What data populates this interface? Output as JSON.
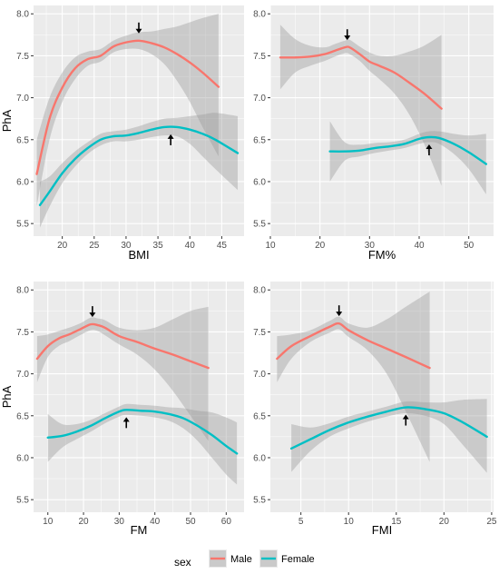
{
  "colors": {
    "male": "#F8766D",
    "female": "#00BFC4",
    "panel_bg": "#EBEBEB",
    "grid": "#ffffff",
    "ribbon": "#999999"
  },
  "legend": {
    "title": "sex",
    "items": [
      "Male",
      "Female"
    ]
  },
  "chart_data": [
    {
      "type": "line",
      "xlabel": "BMI",
      "ylabel": "PhA",
      "xlim": [
        15.5,
        48.5
      ],
      "ylim": [
        5.35,
        8.1
      ],
      "xticks": [
        15,
        20,
        25,
        30,
        35,
        40,
        45
      ],
      "yticks": [
        5.5,
        6.0,
        6.5,
        7.0,
        7.5,
        8.0
      ],
      "ytick_labels": [
        "5.5",
        "6.0",
        "6.5",
        "7.0",
        "7.5",
        "8.0"
      ],
      "grid": true,
      "series": [
        {
          "name": "Male",
          "x": [
            16,
            18,
            20,
            22,
            24,
            26,
            28,
            30,
            32,
            34,
            36,
            38,
            40,
            42,
            44.5
          ],
          "y": [
            6.09,
            6.75,
            7.12,
            7.35,
            7.46,
            7.5,
            7.61,
            7.66,
            7.68,
            7.65,
            7.6,
            7.52,
            7.42,
            7.3,
            7.13
          ],
          "lo": [
            5.7,
            6.5,
            6.95,
            7.22,
            7.38,
            7.43,
            7.54,
            7.58,
            7.58,
            7.52,
            7.4,
            7.2,
            6.95,
            6.65,
            6.3
          ],
          "hi": [
            6.5,
            7.0,
            7.3,
            7.48,
            7.55,
            7.58,
            7.68,
            7.74,
            7.78,
            7.79,
            7.82,
            7.85,
            7.9,
            7.95,
            8.0
          ]
        },
        {
          "name": "Female",
          "x": [
            16.5,
            18,
            20,
            22,
            24,
            26,
            28,
            30,
            32,
            34,
            36,
            38,
            40,
            42,
            44,
            47.5
          ],
          "y": [
            5.72,
            5.88,
            6.1,
            6.27,
            6.4,
            6.5,
            6.54,
            6.55,
            6.58,
            6.62,
            6.65,
            6.65,
            6.62,
            6.57,
            6.5,
            6.34
          ],
          "lo": [
            5.45,
            5.7,
            5.98,
            6.18,
            6.33,
            6.43,
            6.48,
            6.48,
            6.5,
            6.53,
            6.55,
            6.54,
            6.45,
            6.3,
            6.15,
            5.9
          ],
          "hi": [
            6.0,
            6.06,
            6.22,
            6.36,
            6.47,
            6.57,
            6.6,
            6.62,
            6.66,
            6.71,
            6.75,
            6.76,
            6.78,
            6.8,
            6.82,
            6.78
          ]
        }
      ],
      "annotations": [
        {
          "x": 32,
          "y": 7.68,
          "dir": "down"
        },
        {
          "x": 37,
          "y": 6.65,
          "dir": "up"
        }
      ]
    },
    {
      "type": "line",
      "xlabel": "FM%",
      "ylabel": "",
      "xlim": [
        10,
        55
      ],
      "ylim": [
        5.35,
        8.1
      ],
      "xticks": [
        10,
        20,
        30,
        40,
        50
      ],
      "yticks": [
        5.5,
        6.0,
        6.5,
        7.0,
        7.5,
        8.0
      ],
      "ytick_labels": [
        "5.5",
        "6.0",
        "6.5",
        "7.0",
        "7.5",
        "8.0"
      ],
      "grid": true,
      "series": [
        {
          "name": "Male",
          "x": [
            12,
            15,
            18,
            21,
            23,
            25,
            26,
            28,
            30,
            32,
            35,
            38,
            41,
            44.5
          ],
          "y": [
            7.48,
            7.48,
            7.49,
            7.52,
            7.56,
            7.6,
            7.6,
            7.52,
            7.43,
            7.38,
            7.3,
            7.18,
            7.05,
            6.87
          ],
          "lo": [
            7.1,
            7.3,
            7.38,
            7.44,
            7.49,
            7.53,
            7.52,
            7.44,
            7.32,
            7.22,
            7.05,
            6.8,
            6.45,
            5.95
          ],
          "hi": [
            7.87,
            7.7,
            7.62,
            7.6,
            7.64,
            7.68,
            7.69,
            7.61,
            7.54,
            7.5,
            7.5,
            7.55,
            7.62,
            7.75
          ]
        },
        {
          "name": "Female",
          "x": [
            22,
            25,
            28,
            31,
            34,
            37,
            40,
            42,
            44,
            47,
            50,
            53.5
          ],
          "y": [
            6.36,
            6.36,
            6.37,
            6.4,
            6.42,
            6.45,
            6.51,
            6.53,
            6.52,
            6.45,
            6.35,
            6.21
          ],
          "lo": [
            6.0,
            6.25,
            6.3,
            6.34,
            6.37,
            6.4,
            6.45,
            6.47,
            6.45,
            6.33,
            6.15,
            5.85
          ],
          "hi": [
            6.72,
            6.47,
            6.44,
            6.46,
            6.47,
            6.5,
            6.57,
            6.6,
            6.6,
            6.57,
            6.55,
            6.57
          ]
        }
      ],
      "annotations": [
        {
          "x": 25.5,
          "y": 7.6,
          "dir": "down"
        },
        {
          "x": 42,
          "y": 6.53,
          "dir": "up"
        }
      ]
    },
    {
      "type": "line",
      "xlabel": "FM",
      "ylabel": "PhA",
      "xlim": [
        6,
        65
      ],
      "ylim": [
        5.35,
        8.1
      ],
      "xticks": [
        10,
        20,
        30,
        40,
        50,
        60
      ],
      "yticks": [
        5.5,
        6.0,
        6.5,
        7.0,
        7.5,
        8.0
      ],
      "ytick_labels": [
        "5.5",
        "6.0",
        "6.5",
        "7.0",
        "7.5",
        "8.0"
      ],
      "grid": true,
      "series": [
        {
          "name": "Male",
          "x": [
            7,
            10,
            13,
            16,
            19,
            22,
            24,
            26,
            30,
            35,
            40,
            45,
            50,
            55
          ],
          "y": [
            7.18,
            7.33,
            7.42,
            7.47,
            7.53,
            7.59,
            7.58,
            7.55,
            7.45,
            7.38,
            7.3,
            7.23,
            7.15,
            7.07
          ],
          "lo": [
            6.9,
            7.2,
            7.33,
            7.39,
            7.46,
            7.52,
            7.51,
            7.46,
            7.35,
            7.23,
            7.05,
            6.8,
            6.5,
            6.2
          ],
          "hi": [
            7.45,
            7.47,
            7.51,
            7.55,
            7.6,
            7.67,
            7.66,
            7.64,
            7.55,
            7.52,
            7.55,
            7.65,
            7.75,
            7.8
          ]
        },
        {
          "name": "Female",
          "x": [
            10,
            14,
            18,
            22,
            26,
            30,
            32,
            36,
            40,
            44,
            48,
            52,
            56,
            60,
            63
          ],
          "y": [
            6.24,
            6.26,
            6.31,
            6.38,
            6.47,
            6.55,
            6.57,
            6.56,
            6.55,
            6.52,
            6.47,
            6.38,
            6.27,
            6.14,
            6.05
          ],
          "lo": [
            5.95,
            6.12,
            6.22,
            6.31,
            6.41,
            6.49,
            6.51,
            6.5,
            6.48,
            6.44,
            6.35,
            6.2,
            6.0,
            5.8,
            5.68
          ],
          "hi": [
            6.52,
            6.4,
            6.4,
            6.45,
            6.53,
            6.61,
            6.64,
            6.63,
            6.62,
            6.6,
            6.59,
            6.56,
            6.54,
            6.48,
            6.42
          ]
        }
      ],
      "annotations": [
        {
          "x": 22.5,
          "y": 7.59,
          "dir": "down"
        },
        {
          "x": 32,
          "y": 6.57,
          "dir": "up"
        }
      ]
    },
    {
      "type": "line",
      "xlabel": "FMI",
      "ylabel": "",
      "xlim": [
        1.8,
        25.2
      ],
      "ylim": [
        5.35,
        8.1
      ],
      "xticks": [
        5,
        10,
        15,
        20,
        25
      ],
      "yticks": [
        5.5,
        6.0,
        6.5,
        7.0,
        7.5,
        8.0
      ],
      "ytick_labels": [
        "5.5",
        "6.0",
        "6.5",
        "7.0",
        "7.5",
        "8.0"
      ],
      "grid": true,
      "series": [
        {
          "name": "Male",
          "x": [
            2.5,
            4,
            6,
            8,
            9,
            10,
            12,
            14,
            16,
            18.5
          ],
          "y": [
            7.18,
            7.33,
            7.45,
            7.56,
            7.6,
            7.52,
            7.4,
            7.3,
            7.2,
            7.07
          ],
          "lo": [
            6.9,
            7.18,
            7.38,
            7.49,
            7.53,
            7.44,
            7.28,
            7.0,
            6.55,
            5.95
          ],
          "hi": [
            7.45,
            7.47,
            7.52,
            7.63,
            7.68,
            7.6,
            7.55,
            7.65,
            7.8,
            7.98
          ]
        },
        {
          "name": "Female",
          "x": [
            4,
            6,
            8,
            10,
            12,
            14,
            16,
            18,
            20,
            22,
            24.5
          ],
          "y": [
            6.11,
            6.22,
            6.33,
            6.42,
            6.49,
            6.55,
            6.6,
            6.58,
            6.53,
            6.42,
            6.25
          ],
          "lo": [
            5.83,
            6.08,
            6.25,
            6.35,
            6.43,
            6.49,
            6.53,
            6.5,
            6.4,
            6.15,
            5.82
          ],
          "hi": [
            6.4,
            6.36,
            6.41,
            6.49,
            6.55,
            6.61,
            6.67,
            6.66,
            6.66,
            6.69,
            6.7
          ]
        }
      ],
      "annotations": [
        {
          "x": 9,
          "y": 7.6,
          "dir": "down"
        },
        {
          "x": 16,
          "y": 6.6,
          "dir": "up"
        }
      ]
    }
  ]
}
